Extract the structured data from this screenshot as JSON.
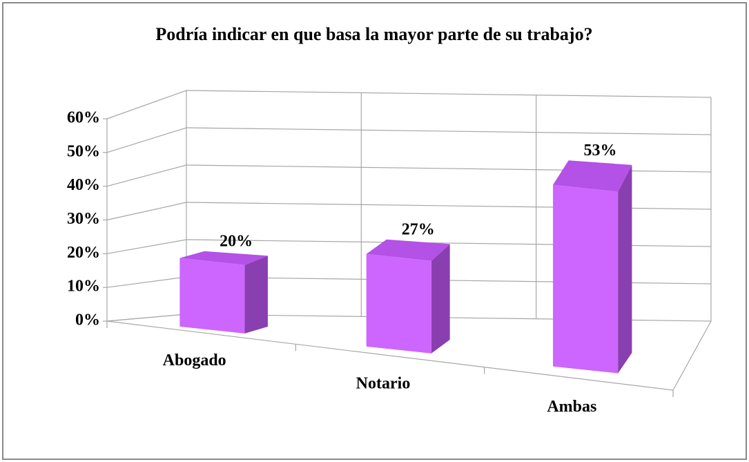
{
  "chart_data": {
    "type": "bar3d",
    "title": "Podría indicar en que basa la mayor parte de su trabajo?",
    "categories": [
      "Abogado",
      "Notario",
      "Ambas"
    ],
    "values": [
      20,
      27,
      53
    ],
    "value_labels": [
      "20%",
      "27%",
      "53%"
    ],
    "color": "#cc66ff",
    "ylim": [
      0,
      60
    ],
    "yticks": [
      {
        "value": 0,
        "label": "0%"
      },
      {
        "value": 10,
        "label": "10%"
      },
      {
        "value": 20,
        "label": "20%"
      },
      {
        "value": 30,
        "label": "30%"
      },
      {
        "value": 40,
        "label": "40%"
      },
      {
        "value": 50,
        "label": "50%"
      },
      {
        "value": 60,
        "label": "60%"
      }
    ],
    "grid": true
  }
}
